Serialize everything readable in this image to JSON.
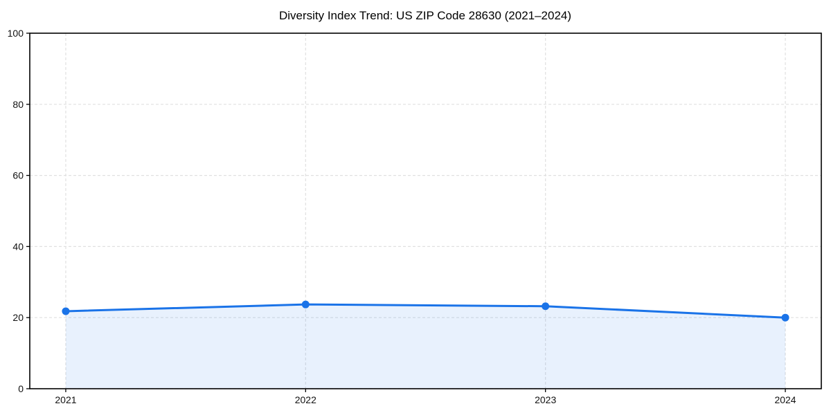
{
  "chart_data": {
    "type": "area",
    "title": "Diversity Index Trend: US ZIP Code 28630 (2021–2024)",
    "series": [
      {
        "name": "Diversity Index",
        "values": [
          21.8,
          23.7,
          23.2,
          20.0
        ]
      }
    ],
    "categories": [
      "2021",
      "2022",
      "2023",
      "2024"
    ],
    "xlabel": "",
    "ylabel": "",
    "ylim": [
      0,
      100
    ],
    "y_ticks": [
      0,
      20,
      40,
      60,
      80,
      100
    ],
    "grid": true,
    "grid_style": "dashed",
    "legend_position": "none",
    "marker": "circle",
    "colors": {
      "line": "#1a73e8",
      "marker": "#1a73e8",
      "fill": "#1a73e8",
      "fill_opacity": 0.1,
      "grid": "#e0e0e0",
      "spine": "#000000",
      "text": "#111111",
      "background": "#ffffff"
    }
  }
}
